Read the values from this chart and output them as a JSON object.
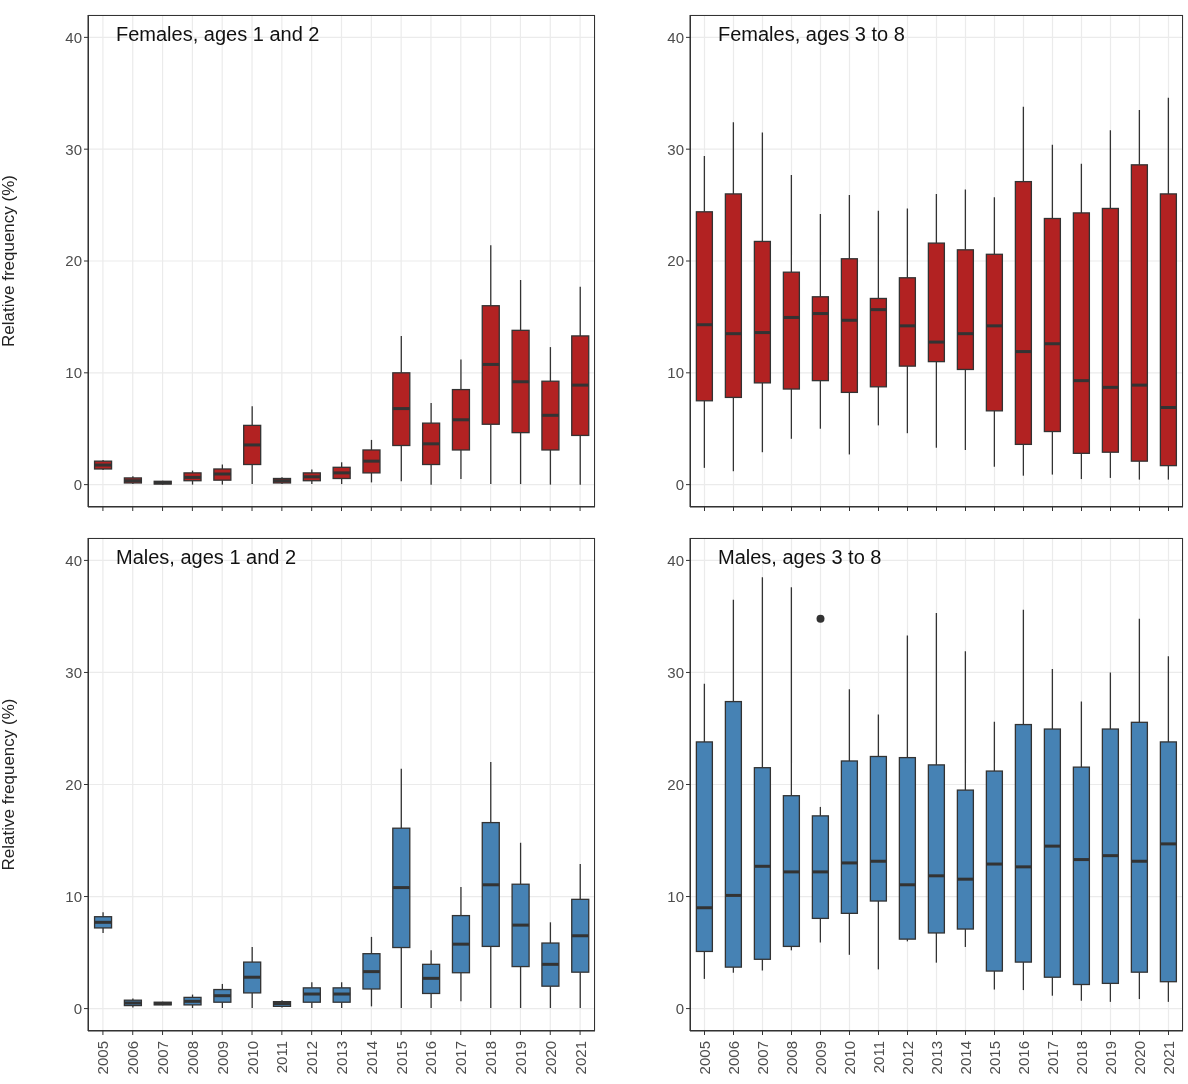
{
  "chart_data": [
    {
      "type": "box",
      "title": "Females, ages 1 and 2",
      "ylabel": "Relative frequency (%)",
      "color": "#b22222",
      "ylim": [
        -2,
        42
      ],
      "yticks": [
        0,
        10,
        20,
        30,
        40
      ],
      "grid": true,
      "tick_labels": "y",
      "categories": [
        "2005",
        "2006",
        "2007",
        "2008",
        "2009",
        "2010",
        "2011",
        "2012",
        "2013",
        "2014",
        "2015",
        "2016",
        "2017",
        "2018",
        "2019",
        "2020",
        "2021"
      ],
      "boxes": [
        {
          "low": 1.3,
          "q1": 1.4,
          "median": 1.75,
          "q3": 2.1,
          "high": 2.2
        },
        {
          "low": 0.05,
          "q1": 0.15,
          "median": 0.35,
          "q3": 0.6,
          "high": 0.75
        },
        {
          "low": 0,
          "q1": 0.05,
          "median": 0.18,
          "q3": 0.3,
          "high": 0.35
        },
        {
          "low": 0,
          "q1": 0.35,
          "median": 0.65,
          "q3": 1.05,
          "high": 1.25
        },
        {
          "low": 0,
          "q1": 0.4,
          "median": 0.95,
          "q3": 1.4,
          "high": 1.8
        },
        {
          "low": 0.05,
          "q1": 1.8,
          "median": 3.55,
          "q3": 5.3,
          "high": 7
        },
        {
          "low": 0.05,
          "q1": 0.15,
          "median": 0.35,
          "q3": 0.55,
          "high": 0.65
        },
        {
          "low": 0.05,
          "q1": 0.35,
          "median": 0.7,
          "q3": 1.05,
          "high": 1.35
        },
        {
          "low": 0.05,
          "q1": 0.55,
          "median": 1.05,
          "q3": 1.55,
          "high": 2
        },
        {
          "low": 0.2,
          "q1": 1.05,
          "median": 2.1,
          "q3": 3.1,
          "high": 4
        },
        {
          "low": 0.3,
          "q1": 3.5,
          "median": 6.8,
          "q3": 10,
          "high": 13.3
        },
        {
          "low": 0,
          "q1": 1.8,
          "median": 3.65,
          "q3": 5.5,
          "high": 7.3
        },
        {
          "low": 0.5,
          "q1": 3.1,
          "median": 5.8,
          "q3": 8.5,
          "high": 11.2
        },
        {
          "low": 0.05,
          "q1": 5.4,
          "median": 10.75,
          "q3": 16,
          "high": 21.4
        },
        {
          "low": 0.05,
          "q1": 4.65,
          "median": 9.2,
          "q3": 13.8,
          "high": 18.3
        },
        {
          "low": 0,
          "q1": 3.1,
          "median": 6.2,
          "q3": 9.25,
          "high": 12.3
        },
        {
          "low": 0,
          "q1": 4.4,
          "median": 8.9,
          "q3": 13.3,
          "high": 17.7
        }
      ]
    },
    {
      "type": "box",
      "title": "Females, ages 3 to 8",
      "color": "#b22222",
      "ylim": [
        -2,
        42
      ],
      "yticks": [
        0,
        10,
        20,
        30,
        40
      ],
      "grid": true,
      "tick_labels": "y",
      "categories": [
        "2005",
        "2006",
        "2007",
        "2008",
        "2009",
        "2010",
        "2011",
        "2012",
        "2013",
        "2014",
        "2015",
        "2016",
        "2017",
        "2018",
        "2019",
        "2020",
        "2021"
      ],
      "boxes": [
        {
          "low": 1.5,
          "q1": 7.5,
          "median": 14.3,
          "q3": 24.4,
          "high": 29.4
        },
        {
          "low": 1.2,
          "q1": 7.8,
          "median": 13.5,
          "q3": 26,
          "high": 32.4
        },
        {
          "low": 2.9,
          "q1": 9.1,
          "median": 13.6,
          "q3": 21.75,
          "high": 31.5
        },
        {
          "low": 4.1,
          "q1": 8.55,
          "median": 14.95,
          "q3": 19,
          "high": 27.7
        },
        {
          "low": 5,
          "q1": 9.3,
          "median": 15.3,
          "q3": 16.8,
          "high": 24.2
        },
        {
          "low": 2.7,
          "q1": 8.25,
          "median": 14.7,
          "q3": 20.2,
          "high": 25.9
        },
        {
          "low": 5.3,
          "q1": 8.75,
          "median": 15.65,
          "q3": 16.65,
          "high": 24.5
        },
        {
          "low": 4.6,
          "q1": 10.6,
          "median": 14.2,
          "q3": 18.5,
          "high": 24.7
        },
        {
          "low": 3.3,
          "q1": 11,
          "median": 12.75,
          "q3": 21.6,
          "high": 26
        },
        {
          "low": 3.1,
          "q1": 10.3,
          "median": 13.5,
          "q3": 21,
          "high": 26.4
        },
        {
          "low": 1.6,
          "q1": 6.6,
          "median": 14.2,
          "q3": 20.6,
          "high": 25.7
        },
        {
          "low": 0.8,
          "q1": 3.6,
          "median": 11.9,
          "q3": 27.1,
          "high": 33.8
        },
        {
          "low": 0.9,
          "q1": 4.75,
          "median": 12.6,
          "q3": 23.8,
          "high": 30.4
        },
        {
          "low": 0.5,
          "q1": 2.8,
          "median": 9.3,
          "q3": 24.3,
          "high": 28.7
        },
        {
          "low": 0.6,
          "q1": 2.9,
          "median": 8.7,
          "q3": 24.7,
          "high": 31.7
        },
        {
          "low": 0.45,
          "q1": 2.1,
          "median": 8.9,
          "q3": 28.6,
          "high": 33.5
        },
        {
          "low": 0.45,
          "q1": 1.7,
          "median": 6.9,
          "q3": 26,
          "high": 34.6
        }
      ]
    },
    {
      "type": "box",
      "title": "Males, ages 1 and 2",
      "ylabel": "Relative frequency (%)",
      "color": "#4682b4",
      "ylim": [
        -2,
        42
      ],
      "yticks": [
        0,
        10,
        20,
        30,
        40
      ],
      "grid": true,
      "categories": [
        "2005",
        "2006",
        "2007",
        "2008",
        "2009",
        "2010",
        "2011",
        "2012",
        "2013",
        "2014",
        "2015",
        "2016",
        "2017",
        "2018",
        "2019",
        "2020",
        "2021"
      ],
      "boxes": [
        {
          "low": 6.75,
          "q1": 7.2,
          "median": 7.7,
          "q3": 8.2,
          "high": 8.6
        },
        {
          "low": 0.1,
          "q1": 0.27,
          "median": 0.5,
          "q3": 0.75,
          "high": 0.9
        },
        {
          "low": 0.3,
          "q1": 0.33,
          "median": 0.45,
          "q3": 0.57,
          "high": 0.6
        },
        {
          "low": 0.05,
          "q1": 0.33,
          "median": 0.65,
          "q3": 1,
          "high": 1.25
        },
        {
          "low": 0.05,
          "q1": 0.57,
          "median": 1.15,
          "q3": 1.7,
          "high": 2.2
        },
        {
          "low": 0.05,
          "q1": 1.4,
          "median": 2.8,
          "q3": 4.15,
          "high": 5.5
        },
        {
          "low": 0.1,
          "q1": 0.2,
          "median": 0.45,
          "q3": 0.62,
          "high": 0.75
        },
        {
          "low": 0.05,
          "q1": 0.57,
          "median": 1.3,
          "q3": 1.85,
          "high": 2.35
        },
        {
          "low": 0.05,
          "q1": 0.57,
          "median": 1.3,
          "q3": 1.85,
          "high": 2.35
        },
        {
          "low": 0.2,
          "q1": 1.75,
          "median": 3.3,
          "q3": 4.9,
          "high": 6.4
        },
        {
          "low": 0.05,
          "q1": 5.45,
          "median": 10.8,
          "q3": 16.1,
          "high": 21.4
        },
        {
          "low": 0.05,
          "q1": 1.35,
          "median": 2.7,
          "q3": 3.95,
          "high": 5.2
        },
        {
          "low": 0.65,
          "q1": 3.2,
          "median": 5.75,
          "q3": 8.3,
          "high": 10.85
        },
        {
          "low": 0.05,
          "q1": 5.55,
          "median": 11.05,
          "q3": 16.6,
          "high": 22
        },
        {
          "low": 0.05,
          "q1": 3.75,
          "median": 7.45,
          "q3": 11.1,
          "high": 14.8
        },
        {
          "low": 0.05,
          "q1": 2,
          "median": 3.95,
          "q3": 5.85,
          "high": 7.7
        },
        {
          "low": 0.05,
          "q1": 3.25,
          "median": 6.5,
          "q3": 9.75,
          "high": 12.9
        }
      ]
    },
    {
      "type": "box",
      "title": "Males, ages 3 to 8",
      "color": "#4682b4",
      "ylim": [
        -2,
        42
      ],
      "yticks": [
        0,
        10,
        20,
        30,
        40
      ],
      "grid": true,
      "categories": [
        "2005",
        "2006",
        "2007",
        "2008",
        "2009",
        "2010",
        "2011",
        "2012",
        "2013",
        "2014",
        "2015",
        "2016",
        "2017",
        "2018",
        "2019",
        "2020",
        "2021"
      ],
      "boxes": [
        {
          "low": 2.65,
          "q1": 5.1,
          "median": 9,
          "q3": 23.8,
          "high": 29
        },
        {
          "low": 3.2,
          "q1": 3.7,
          "median": 10.1,
          "q3": 27.4,
          "high": 36.5
        },
        {
          "low": 3.4,
          "q1": 4.4,
          "median": 12.7,
          "q3": 21.5,
          "high": 38.5
        },
        {
          "low": 5.2,
          "q1": 5.55,
          "median": 12.2,
          "q3": 19,
          "high": 37.6
        },
        {
          "low": 5.9,
          "q1": 8.05,
          "median": 12.2,
          "q3": 17.2,
          "high": 18,
          "outliers": [
            34.8
          ]
        },
        {
          "low": 4.8,
          "q1": 8.5,
          "median": 13,
          "q3": 22.1,
          "high": 28.5
        },
        {
          "low": 3.5,
          "q1": 9.6,
          "median": 13.15,
          "q3": 22.5,
          "high": 26.25
        },
        {
          "low": 6,
          "q1": 6.2,
          "median": 11.05,
          "q3": 22.4,
          "high": 33.3
        },
        {
          "low": 4.1,
          "q1": 6.75,
          "median": 11.85,
          "q3": 21.75,
          "high": 35.3
        },
        {
          "low": 5.5,
          "q1": 7.1,
          "median": 11.55,
          "q3": 19.5,
          "high": 31.9
        },
        {
          "low": 1.7,
          "q1": 3.35,
          "median": 12.9,
          "q3": 21.2,
          "high": 25.6
        },
        {
          "low": 1.65,
          "q1": 4.15,
          "median": 12.65,
          "q3": 25.35,
          "high": 35.6
        },
        {
          "low": 1.15,
          "q1": 2.8,
          "median": 14.5,
          "q3": 24.95,
          "high": 30.3
        },
        {
          "low": 0.7,
          "q1": 2.15,
          "median": 13.3,
          "q3": 21.55,
          "high": 27.4
        },
        {
          "low": 0.6,
          "q1": 2.25,
          "median": 13.65,
          "q3": 24.95,
          "high": 30
        },
        {
          "low": 0.85,
          "q1": 3.25,
          "median": 13.15,
          "q3": 25.55,
          "high": 34.8
        },
        {
          "low": 0.6,
          "q1": 2.4,
          "median": 14.7,
          "q3": 23.8,
          "high": 31.45
        }
      ]
    }
  ]
}
